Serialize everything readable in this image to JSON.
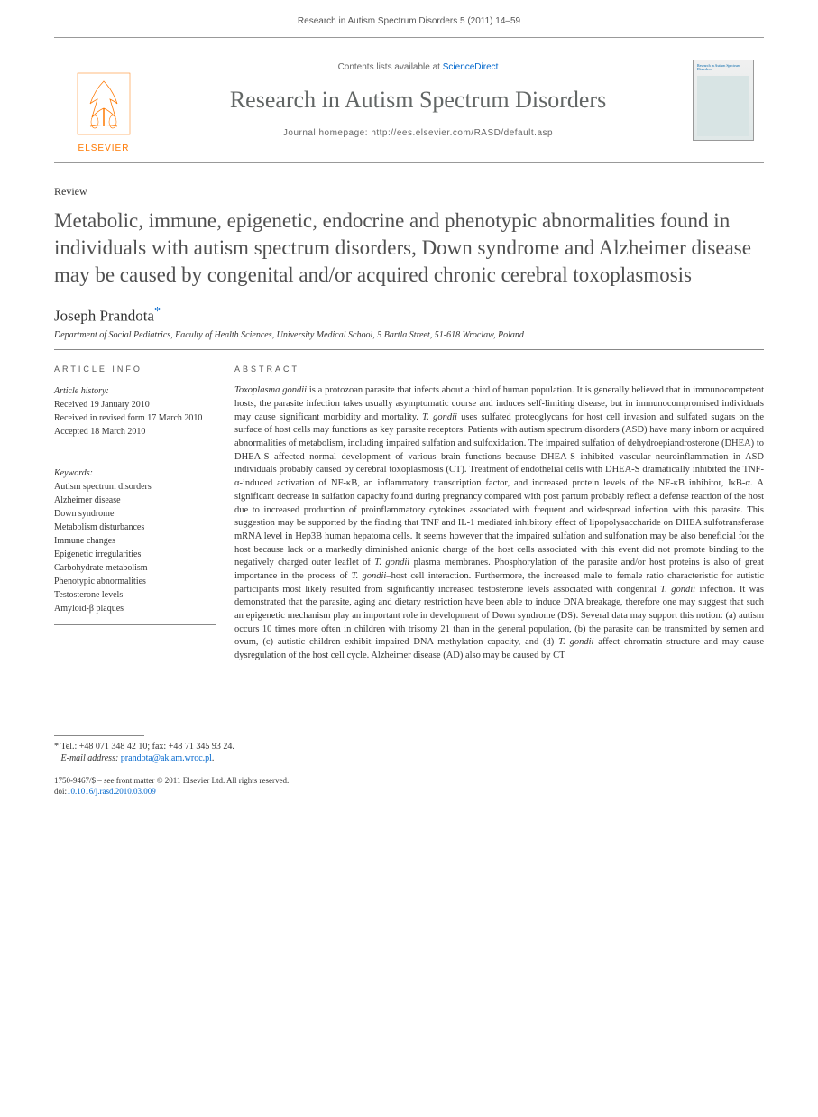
{
  "running_head": "Research in Autism Spectrum Disorders 5 (2011) 14–59",
  "masthead": {
    "publisher_name": "ELSEVIER",
    "contents_prefix": "Contents lists available at ",
    "contents_link_text": "ScienceDirect",
    "journal_title": "Research in Autism Spectrum Disorders",
    "homepage_label": "Journal homepage: ",
    "homepage_url": "http://ees.elsevier.com/RASD/default.asp",
    "cover_title": "Research in Autism Spectrum Disorders",
    "logo_color": "#ff7800",
    "link_color": "#0066cc",
    "title_color": "#626665"
  },
  "article": {
    "type": "Review",
    "title": "Metabolic, immune, epigenetic, endocrine and phenotypic abnormalities found in individuals with autism spectrum disorders, Down syndrome and Alzheimer disease may be caused by congenital and/or acquired chronic cerebral toxoplasmosis",
    "author": "Joseph Prandota",
    "author_mark": "*",
    "affiliation": "Department of Social Pediatrics, Faculty of Health Sciences, University Medical School, 5 Bartla Street, 51-618 Wroclaw, Poland"
  },
  "info": {
    "article_info_label": "ARTICLE INFO",
    "history_label": "Article history:",
    "received": "Received 19 January 2010",
    "revised": "Received in revised form 17 March 2010",
    "accepted": "Accepted 18 March 2010",
    "keywords_label": "Keywords:",
    "keywords": [
      "Autism spectrum disorders",
      "Alzheimer disease",
      "Down syndrome",
      "Metabolism disturbances",
      "Immune changes",
      "Epigenetic irregularities",
      "Carbohydrate metabolism",
      "Phenotypic abnormalities",
      "Testosterone levels",
      "Amyloid-β plaques"
    ]
  },
  "abstract": {
    "label": "ABSTRACT",
    "text_html": "<em>Toxoplasma gondii</em> is a protozoan parasite that infects about a third of human population. It is generally believed that in immunocompetent hosts, the parasite infection takes usually asymptomatic course and induces self-limiting disease, but in immunocompromised individuals may cause significant morbidity and mortality. <em>T. gondii</em> uses sulfated proteoglycans for host cell invasion and sulfated sugars on the surface of host cells may functions as key parasite receptors. Patients with autism spectrum disorders (ASD) have many inborn or acquired abnormalities of metabolism, including impaired sulfation and sulfoxidation. The impaired sulfation of dehydroepiandrosterone (DHEA) to DHEA-S affected normal development of various brain functions because DHEA-S inhibited vascular neuroinflammation in ASD individuals probably caused by cerebral toxoplasmosis (CT). Treatment of endothelial cells with DHEA-S dramatically inhibited the TNF-α-induced activation of NF-κB, an inflammatory transcription factor, and increased protein levels of the NF-κB inhibitor, IκB-α. A significant decrease in sulfation capacity found during pregnancy compared with post partum probably reflect a defense reaction of the host due to increased production of proinflammatory cytokines associated with frequent and widespread infection with this parasite. This suggestion may be supported by the finding that TNF and IL-1 mediated inhibitory effect of lipopolysaccharide on DHEA sulfotransferase mRNA level in Hep3B human hepatoma cells. It seems however that the impaired sulfation and sulfonation may be also beneficial for the host because lack or a markedly diminished anionic charge of the host cells associated with this event did not promote binding to the negatively charged outer leaflet of <em>T. gondii</em> plasma membranes. Phosphorylation of the parasite and/or host proteins is also of great importance in the process of <em>T. gondii</em>–host cell interaction. Furthermore, the increased male to female ratio characteristic for autistic participants most likely resulted from significantly increased testosterone levels associated with congenital <em>T. gondii</em> infection. It was demonstrated that the parasite, aging and dietary restriction have been able to induce DNA breakage, therefore one may suggest that such an epigenetic mechanism play an important role in development of Down syndrome (DS). Several data may support this notion: (a) autism occurs 10 times more often in children with trisomy 21 than in the general population, (b) the parasite can be transmitted by semen and ovum, (c) autistic children exhibit impaired DNA methylation capacity, and (d) <em>T. gondii</em> affect chromatin structure and may cause dysregulation of the host cell cycle. Alzheimer disease (AD) also may be caused by CT"
  },
  "footer": {
    "corr_mark": "*",
    "corr_text": "Tel.: +48 071 348 42 10; fax: +48 71 345 93 24.",
    "email_label": "E-mail address:",
    "email": "prandota@ak.am.wroc.pl",
    "email_suffix": ".",
    "copyright": "1750-9467/$ – see front matter © 2011 Elsevier Ltd. All rights reserved.",
    "doi_prefix": "doi:",
    "doi": "10.1016/j.rasd.2010.03.009"
  }
}
